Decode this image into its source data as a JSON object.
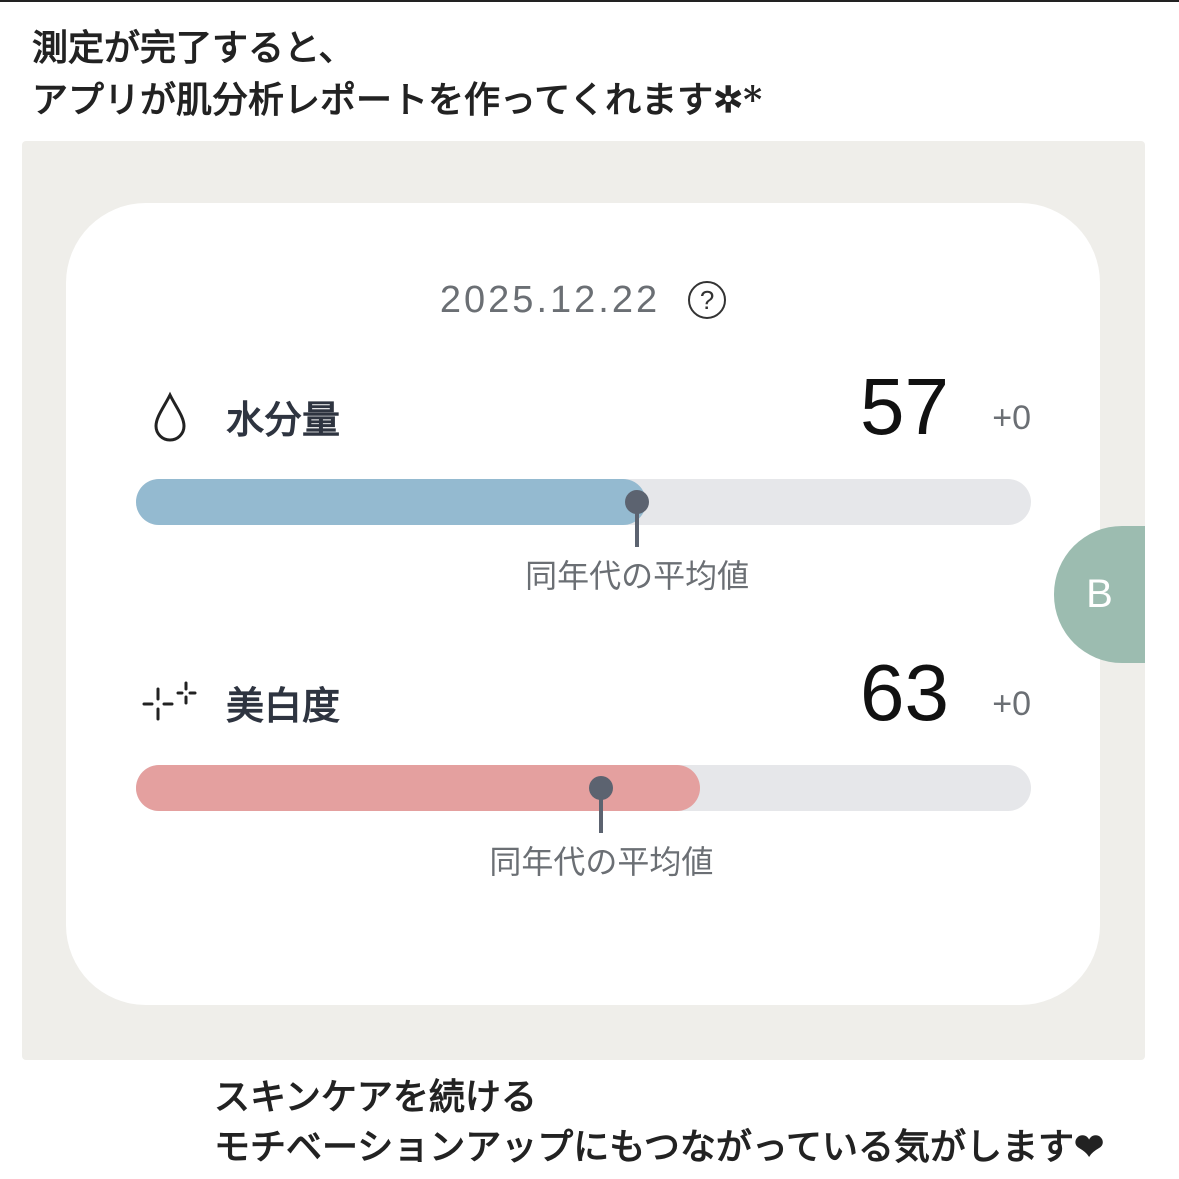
{
  "caption_top": [
    "測定が完了すると、",
    "アプリが肌分析レポートを作ってくれます✲*"
  ],
  "caption_bottom": [
    "スキンケアを続ける",
    "モチベーションアップにもつながっている気がします❤"
  ],
  "card": {
    "date": "2025.12.22",
    "help_symbol": "?",
    "metrics": [
      {
        "icon": "water-drop-icon",
        "label": "水分量",
        "value": "57",
        "delta": "+0",
        "level": 0.57,
        "average_level": 0.56,
        "average_label": "同年代の平均値",
        "color": "#94bad0"
      },
      {
        "icon": "sparkle-icon",
        "label": "美白度",
        "value": "63",
        "delta": "+0",
        "level": 0.63,
        "average_level": 0.52,
        "average_label": "同年代の平均値",
        "color": "#e4a09f"
      }
    ]
  },
  "side_tab": {
    "label": "B",
    "color": "#9cbcb0"
  }
}
